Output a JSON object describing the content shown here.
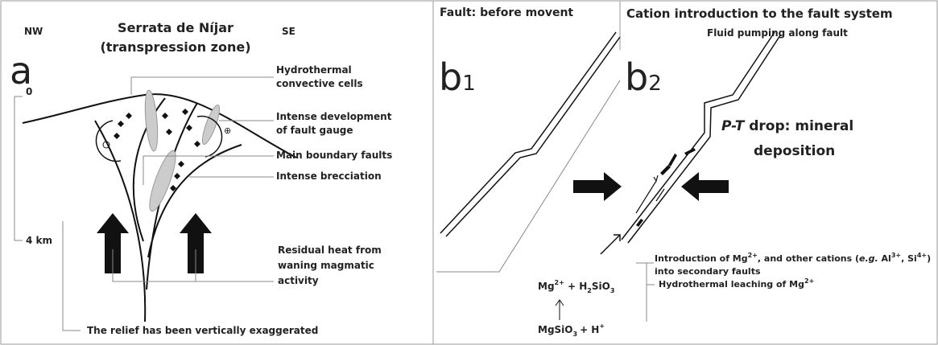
{
  "panel_a": {
    "label": "a",
    "nw": "NW",
    "se": "SE",
    "title": "Serrata de Níjar",
    "subtitle": "(transpression zone)",
    "depth_top": "0",
    "depth_bottom": "4 km",
    "callouts": [
      [
        "Hydrothermal",
        "convective cells"
      ],
      [
        "Intense development",
        "of fault gauge"
      ],
      [
        "Main boundary faults"
      ],
      [
        "Intense brecciation"
      ],
      [
        "Residual heat from",
        "waning magmatic",
        "activity"
      ]
    ],
    "footnote": "The relief has been vertically exaggerated"
  },
  "panel_b1": {
    "title": "Fault: before movent",
    "label": "b",
    "subscript": "1"
  },
  "panel_b2": {
    "title": "Cation introduction to the fault system",
    "subtitle": "Fluid pumping along fault",
    "label": "b",
    "subscript": "2",
    "pt_label": [
      "P-T",
      " drop: mineral",
      "deposition"
    ],
    "note_1": {
      "line_1": [
        "Introduction of Mg",
        "2+",
        ", and other cations (",
        "e.g.",
        " Al",
        "3+",
        ", Si",
        "4+",
        ")"
      ],
      "line_2": "into secondary faults"
    },
    "note_2": [
      "Hydrothermal leaching of Mg",
      "2+"
    ],
    "reaction_top": [
      "Mg",
      "2+",
      " + H",
      "2",
      "SiO",
      "3"
    ],
    "reaction_bottom": [
      "MgSiO",
      "3",
      "+ H",
      "+"
    ]
  }
}
